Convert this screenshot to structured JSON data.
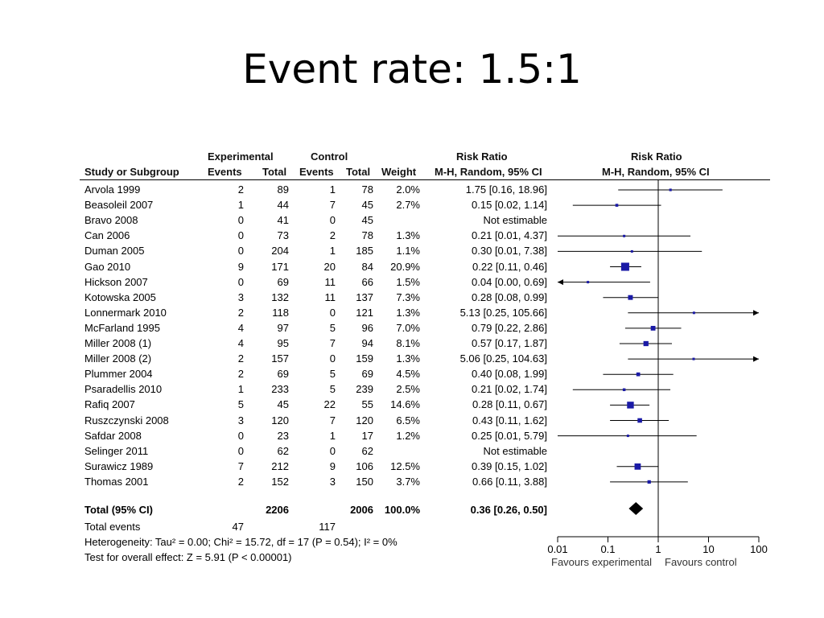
{
  "slide": {
    "title": "Event rate: 1.5:1"
  },
  "table": {
    "group_headers": {
      "experimental": "Experimental",
      "control": "Control",
      "rr_text": "Risk Ratio",
      "rr_plot": "Risk Ratio"
    },
    "columns": {
      "study": "Study or Subgroup",
      "exp_events": "Events",
      "exp_total": "Total",
      "ctl_events": "Events",
      "ctl_total": "Total",
      "weight": "Weight",
      "rr_text": "M-H, Random, 95% CI",
      "rr_plot": "M-H, Random, 95% CI"
    },
    "total": {
      "label": "Total (95% CI)",
      "exp_total": "2206",
      "ctl_total": "2006",
      "weight": "100.0%",
      "ci": "0.36 [0.26, 0.50]"
    },
    "total_events": {
      "label": "Total events",
      "exp": "47",
      "ctl": "117"
    },
    "heterogeneity": "Heterogeneity: Tau² = 0.00; Chi² = 15.72, df = 17 (P = 0.54); I² = 0%",
    "overall_effect": "Test for overall effect: Z = 5.91 (P < 0.00001)"
  },
  "chart_data": {
    "type": "forest",
    "x_scale": "log",
    "xlim": [
      0.01,
      100
    ],
    "ticks": [
      {
        "value": 0.01,
        "label": "0.01"
      },
      {
        "value": 0.1,
        "label": "0.1"
      },
      {
        "value": 1,
        "label": "1"
      },
      {
        "value": 10,
        "label": "10"
      },
      {
        "value": 100,
        "label": "100"
      }
    ],
    "favours_left": "Favours experimental",
    "favours_right": "Favours control",
    "colors": {
      "marker": "#1a1aa6",
      "line": "#000000"
    },
    "studies": [
      {
        "name": "Arvola 1999",
        "exp_events": "2",
        "exp_total": "89",
        "ctl_events": "1",
        "ctl_total": "78",
        "weight": "2.0%",
        "ci": "1.75 [0.16, 18.96]",
        "rr": 1.75,
        "lo": 0.16,
        "hi": 18.96,
        "w": 2.0
      },
      {
        "name": "Beasoleil 2007",
        "exp_events": "1",
        "exp_total": "44",
        "ctl_events": "7",
        "ctl_total": "45",
        "weight": "2.7%",
        "ci": "0.15 [0.02, 1.14]",
        "rr": 0.15,
        "lo": 0.02,
        "hi": 1.14,
        "w": 2.7
      },
      {
        "name": "Bravo 2008",
        "exp_events": "0",
        "exp_total": "41",
        "ctl_events": "0",
        "ctl_total": "45",
        "weight": "",
        "ci": "Not estimable",
        "rr": null,
        "lo": null,
        "hi": null,
        "w": 0
      },
      {
        "name": "Can 2006",
        "exp_events": "0",
        "exp_total": "73",
        "ctl_events": "2",
        "ctl_total": "78",
        "weight": "1.3%",
        "ci": "0.21 [0.01, 4.37]",
        "rr": 0.21,
        "lo": 0.01,
        "hi": 4.37,
        "w": 1.3
      },
      {
        "name": "Duman 2005",
        "exp_events": "0",
        "exp_total": "204",
        "ctl_events": "1",
        "ctl_total": "185",
        "weight": "1.1%",
        "ci": "0.30 [0.01, 7.38]",
        "rr": 0.3,
        "lo": 0.01,
        "hi": 7.38,
        "w": 1.1
      },
      {
        "name": "Gao 2010",
        "exp_events": "9",
        "exp_total": "171",
        "ctl_events": "20",
        "ctl_total": "84",
        "weight": "20.9%",
        "ci": "0.22 [0.11, 0.46]",
        "rr": 0.22,
        "lo": 0.11,
        "hi": 0.46,
        "w": 20.9
      },
      {
        "name": "Hickson 2007",
        "exp_events": "0",
        "exp_total": "69",
        "ctl_events": "11",
        "ctl_total": "66",
        "weight": "1.5%",
        "ci": "0.04 [0.00, 0.69]",
        "rr": 0.04,
        "lo": 0.0,
        "hi": 0.69,
        "w": 1.5
      },
      {
        "name": "Kotowska 2005",
        "exp_events": "3",
        "exp_total": "132",
        "ctl_events": "11",
        "ctl_total": "137",
        "weight": "7.3%",
        "ci": "0.28 [0.08, 0.99]",
        "rr": 0.28,
        "lo": 0.08,
        "hi": 0.99,
        "w": 7.3
      },
      {
        "name": "Lonnermark 2010",
        "exp_events": "2",
        "exp_total": "118",
        "ctl_events": "0",
        "ctl_total": "121",
        "weight": "1.3%",
        "ci": "5.13 [0.25, 105.66]",
        "rr": 5.13,
        "lo": 0.25,
        "hi": 105.66,
        "w": 1.3
      },
      {
        "name": "McFarland 1995",
        "exp_events": "4",
        "exp_total": "97",
        "ctl_events": "5",
        "ctl_total": "96",
        "weight": "7.0%",
        "ci": "0.79 [0.22, 2.86]",
        "rr": 0.79,
        "lo": 0.22,
        "hi": 2.86,
        "w": 7.0
      },
      {
        "name": "Miller 2008 (1)",
        "exp_events": "4",
        "exp_total": "95",
        "ctl_events": "7",
        "ctl_total": "94",
        "weight": "8.1%",
        "ci": "0.57 [0.17, 1.87]",
        "rr": 0.57,
        "lo": 0.17,
        "hi": 1.87,
        "w": 8.1
      },
      {
        "name": "Miller 2008 (2)",
        "exp_events": "2",
        "exp_total": "157",
        "ctl_events": "0",
        "ctl_total": "159",
        "weight": "1.3%",
        "ci": "5.06 [0.25, 104.63]",
        "rr": 5.06,
        "lo": 0.25,
        "hi": 104.63,
        "w": 1.3
      },
      {
        "name": "Plummer 2004",
        "exp_events": "2",
        "exp_total": "69",
        "ctl_events": "5",
        "ctl_total": "69",
        "weight": "4.5%",
        "ci": "0.40 [0.08, 1.99]",
        "rr": 0.4,
        "lo": 0.08,
        "hi": 1.99,
        "w": 4.5
      },
      {
        "name": "Psaradellis 2010",
        "exp_events": "1",
        "exp_total": "233",
        "ctl_events": "5",
        "ctl_total": "239",
        "weight": "2.5%",
        "ci": "0.21 [0.02, 1.74]",
        "rr": 0.21,
        "lo": 0.02,
        "hi": 1.74,
        "w": 2.5
      },
      {
        "name": "Rafiq 2007",
        "exp_events": "5",
        "exp_total": "45",
        "ctl_events": "22",
        "ctl_total": "55",
        "weight": "14.6%",
        "ci": "0.28 [0.11, 0.67]",
        "rr": 0.28,
        "lo": 0.11,
        "hi": 0.67,
        "w": 14.6
      },
      {
        "name": "Ruszczynski 2008",
        "exp_events": "3",
        "exp_total": "120",
        "ctl_events": "7",
        "ctl_total": "120",
        "weight": "6.5%",
        "ci": "0.43 [0.11, 1.62]",
        "rr": 0.43,
        "lo": 0.11,
        "hi": 1.62,
        "w": 6.5
      },
      {
        "name": "Safdar 2008",
        "exp_events": "0",
        "exp_total": "23",
        "ctl_events": "1",
        "ctl_total": "17",
        "weight": "1.2%",
        "ci": "0.25 [0.01, 5.79]",
        "rr": 0.25,
        "lo": 0.01,
        "hi": 5.79,
        "w": 1.2
      },
      {
        "name": "Selinger 2011",
        "exp_events": "0",
        "exp_total": "62",
        "ctl_events": "0",
        "ctl_total": "62",
        "weight": "",
        "ci": "Not estimable",
        "rr": null,
        "lo": null,
        "hi": null,
        "w": 0
      },
      {
        "name": "Surawicz 1989",
        "exp_events": "7",
        "exp_total": "212",
        "ctl_events": "9",
        "ctl_total": "106",
        "weight": "12.5%",
        "ci": "0.39 [0.15, 1.02]",
        "rr": 0.39,
        "lo": 0.15,
        "hi": 1.02,
        "w": 12.5
      },
      {
        "name": "Thomas 2001",
        "exp_events": "2",
        "exp_total": "152",
        "ctl_events": "3",
        "ctl_total": "150",
        "weight": "3.7%",
        "ci": "0.66 [0.11, 3.88]",
        "rr": 0.66,
        "lo": 0.11,
        "hi": 3.88,
        "w": 3.7
      }
    ],
    "pooled": {
      "rr": 0.36,
      "lo": 0.26,
      "hi": 0.5
    }
  }
}
